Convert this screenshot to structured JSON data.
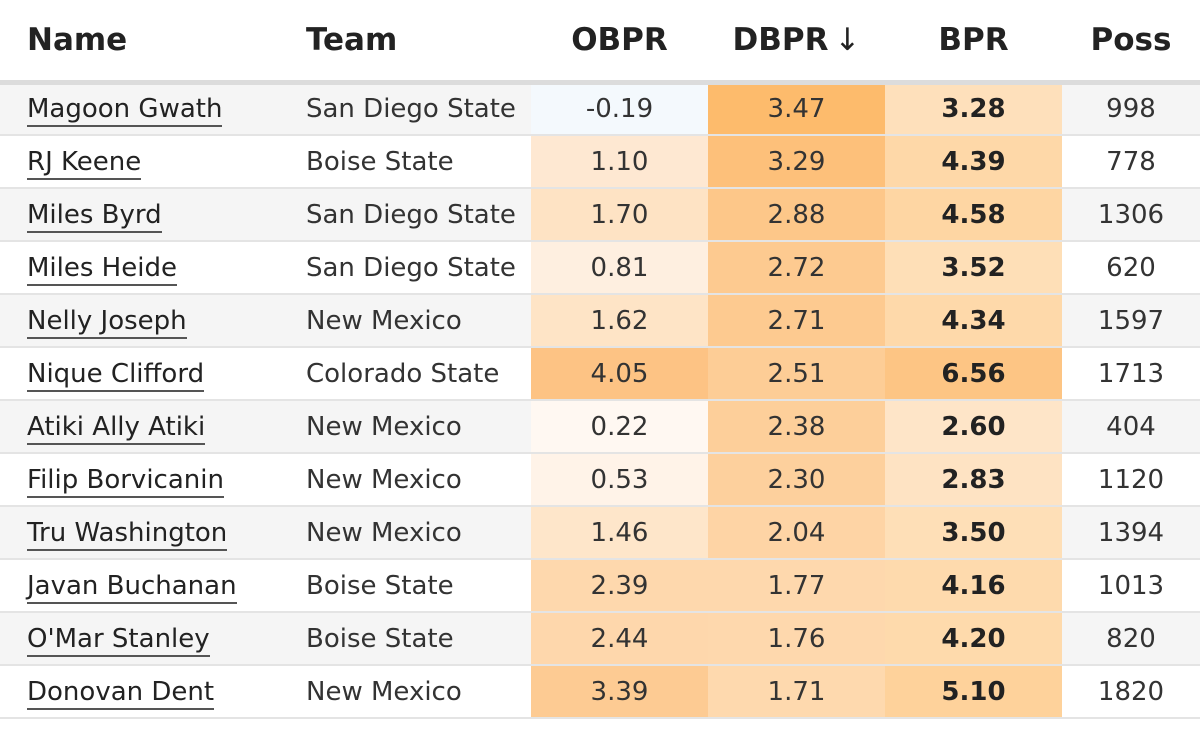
{
  "columns": {
    "name": "Name",
    "team": "Team",
    "obpr": "OBPR",
    "dbpr": "DBPR",
    "dbpr_sort_arrow": "↓",
    "bpr": "BPR",
    "poss": "Poss"
  },
  "rows": [
    {
      "name": "Magoon Gwath",
      "team": "San Diego State",
      "obpr": "-0.19",
      "dbpr": "3.47",
      "bpr": "3.28",
      "poss": "998",
      "colors": {
        "obpr": "#f4f9fd",
        "dbpr": "#fdbb6c",
        "bpr": "#fee0bb"
      }
    },
    {
      "name": "RJ Keene",
      "team": "Boise State",
      "obpr": "1.10",
      "dbpr": "3.29",
      "bpr": "4.39",
      "poss": "778",
      "colors": {
        "obpr": "#fee8d2",
        "dbpr": "#fdc07a",
        "bpr": "#fed8a8"
      }
    },
    {
      "name": "Miles Byrd",
      "team": "San Diego State",
      "obpr": "1.70",
      "dbpr": "2.88",
      "bpr": "4.58",
      "poss": "1306",
      "colors": {
        "obpr": "#fee3c4",
        "dbpr": "#fdc789",
        "bpr": "#fed6a3"
      }
    },
    {
      "name": "Miles Heide",
      "team": "San Diego State",
      "obpr": "0.81",
      "dbpr": "2.72",
      "bpr": "3.52",
      "poss": "620",
      "colors": {
        "obpr": "#feefe0",
        "dbpr": "#fdca90",
        "bpr": "#fedfb7"
      }
    },
    {
      "name": "Nelly Joseph",
      "team": "New Mexico",
      "obpr": "1.62",
      "dbpr": "2.71",
      "bpr": "4.34",
      "poss": "1597",
      "colors": {
        "obpr": "#fee4c6",
        "dbpr": "#fdca90",
        "bpr": "#fed9aa"
      }
    },
    {
      "name": "Nique Clifford",
      "team": "Colorado State",
      "obpr": "4.05",
      "dbpr": "2.51",
      "bpr": "6.56",
      "poss": "1713",
      "colors": {
        "obpr": "#fdc384",
        "dbpr": "#fdcd96",
        "bpr": "#fdc584"
      }
    },
    {
      "name": "Atiki Ally Atiki",
      "team": "New Mexico",
      "obpr": "0.22",
      "dbpr": "2.38",
      "bpr": "2.60",
      "poss": "404",
      "colors": {
        "obpr": "#fff8f2",
        "dbpr": "#fdcf9a",
        "bpr": "#fee5c8"
      }
    },
    {
      "name": "Filip Borvicanin",
      "team": "New Mexico",
      "obpr": "0.53",
      "dbpr": "2.30",
      "bpr": "2.83",
      "poss": "1120",
      "colors": {
        "obpr": "#fff3e8",
        "dbpr": "#fdd09d",
        "bpr": "#fee3c3"
      }
    },
    {
      "name": "Tru Washington",
      "team": "New Mexico",
      "obpr": "1.46",
      "dbpr": "2.04",
      "bpr": "3.50",
      "poss": "1394",
      "colors": {
        "obpr": "#fee6ca",
        "dbpr": "#fed4a5",
        "bpr": "#fedfb7"
      }
    },
    {
      "name": "Javan Buchanan",
      "team": "Boise State",
      "obpr": "2.39",
      "dbpr": "1.77",
      "bpr": "4.16",
      "poss": "1013",
      "colors": {
        "obpr": "#fed8ad",
        "dbpr": "#fed8ad",
        "bpr": "#fedaad"
      }
    },
    {
      "name": "O'Mar Stanley",
      "team": "Boise State",
      "obpr": "2.44",
      "dbpr": "1.76",
      "bpr": "4.20",
      "poss": "820",
      "colors": {
        "obpr": "#fed7ac",
        "dbpr": "#fed8ad",
        "bpr": "#fedaac"
      }
    },
    {
      "name": "Donovan Dent",
      "team": "New Mexico",
      "obpr": "3.39",
      "dbpr": "1.71",
      "bpr": "5.10",
      "poss": "1820",
      "colors": {
        "obpr": "#fdcb93",
        "dbpr": "#fed9ae",
        "bpr": "#fed29b"
      }
    }
  ]
}
